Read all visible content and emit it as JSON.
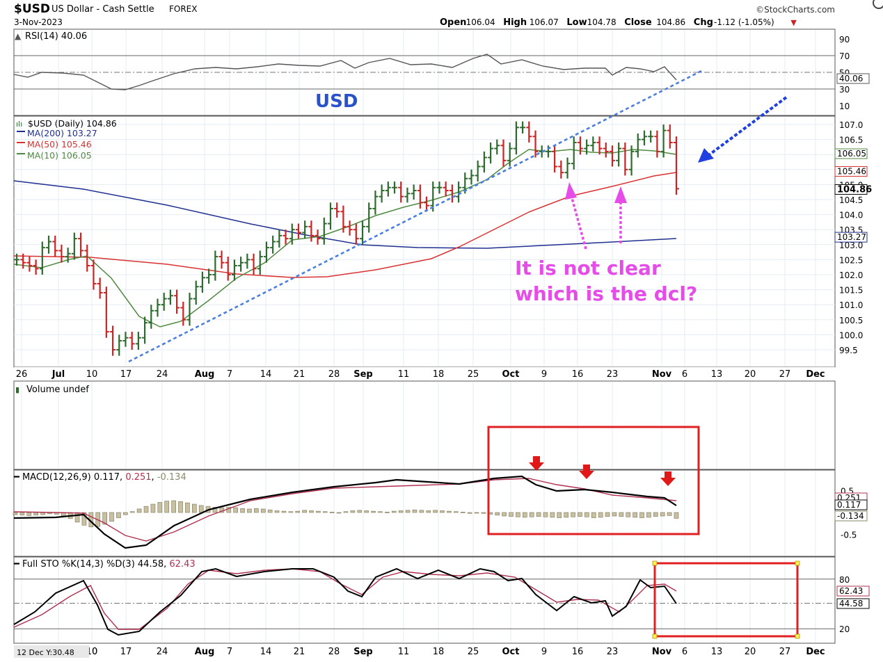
{
  "header": {
    "symbol": "$USD",
    "name": "US Dollar - Cash Settle",
    "exchange": "FOREX",
    "date": "3-Nov-2023",
    "source": "©StockCharts.com",
    "ohlc": [
      {
        "label": "Open",
        "value": "106.04"
      },
      {
        "label": "High",
        "value": "106.07"
      },
      {
        "label": "Low",
        "value": "104.78"
      },
      {
        "label": "Close",
        "value": "104.86"
      },
      {
        "label": "Chg",
        "value": "-1.12 (-1.05%)"
      }
    ]
  },
  "colors": {
    "price_up": "#2d6a2d",
    "price_down": "#cc2222",
    "ma200": "#1f2f8f",
    "ma50": "#d93030",
    "ma10": "#4f8a40",
    "macd_signal": "#b03050",
    "trendline": "#4a7fe0",
    "annotation_pink": "#e64ce8",
    "box_red": "#e02020",
    "grid": "#e4ecf4",
    "axis_bg": "#ffffff"
  },
  "x_axis": {
    "tick_labels": [
      "26",
      "Jul",
      "10",
      "17",
      "24",
      "Aug",
      "7",
      "14",
      "21",
      "28",
      "Sep",
      "11",
      "18",
      "25",
      "Oct",
      "9",
      "16",
      "23",
      "Nov",
      "6",
      "13",
      "20",
      "27",
      "Dec"
    ],
    "bold_labels": [
      "Jul",
      "Aug",
      "Sep",
      "Oct",
      "Nov",
      "Dec"
    ],
    "bottom_first_label": "0",
    "bottom_corner_label": "12 Dec Y:30.48"
  },
  "rsi_panel": {
    "legend": "RSI(14) 40.06",
    "y_ticks": [
      "90",
      "70",
      "50",
      "30",
      "10"
    ],
    "last_value_label": "40.06",
    "overlay_label": "USD"
  },
  "price_panel": {
    "legend": [
      {
        "text": "$USD (Daily) 104.86",
        "color": "#000000"
      },
      {
        "text": "MA(200) 103.27",
        "color": "#1f2f8f"
      },
      {
        "text": "MA(50) 105.46",
        "color": "#d93030"
      },
      {
        "text": "MA(10) 106.05",
        "color": "#4f8a40"
      }
    ],
    "y_ticks": [
      "107.0",
      "106.5",
      "106.0",
      "105.5",
      "105.0",
      "104.5",
      "104.0",
      "103.5",
      "103.0",
      "102.5",
      "102.0",
      "101.5",
      "101.0",
      "100.5",
      "100.0",
      "99.5"
    ],
    "value_labels": [
      {
        "text": "106.05",
        "value": 106.05,
        "color": "#4f8a40"
      },
      {
        "text": "105.46",
        "value": 105.46,
        "color": "#d93030"
      },
      {
        "text": "104.86",
        "value": 104.86,
        "color": "#000000"
      },
      {
        "text": "103.27",
        "value": 103.27,
        "color": "#1f2f8f"
      }
    ],
    "annotation_line1": "It is not clear",
    "annotation_line2": "which is the dcl?"
  },
  "volume_panel": {
    "legend": "Volume undef"
  },
  "macd_panel": {
    "legend_prefix": "MACD(12,26,9) 0.117, ",
    "legend_signal": "0.251",
    "legend_sep": ", ",
    "legend_hist": "-0.134",
    "y_ticks": [
      "0.5",
      "-0.5"
    ],
    "value_labels": [
      "0.251",
      "0.117",
      "-0.134"
    ]
  },
  "sto_panel": {
    "legend_prefix": "Full STO %K(14,3) %D(3) 44.58, ",
    "legend_d": "62.43",
    "y_ticks": [
      "80",
      "20"
    ],
    "value_labels": [
      "62.43",
      "44.58"
    ]
  },
  "chart_data": {
    "type": "line",
    "title": "$USD US Dollar - Cash Settle FOREX",
    "xlabel": "",
    "ylabel": "",
    "x_start": "2023-06-26",
    "x_end": "2023-12-04",
    "price": {
      "name": "$USD (Daily)",
      "ylim": [
        99.2,
        107.2
      ],
      "closes": [
        102.5,
        102.4,
        102.3,
        102.2,
        102.9,
        103.1,
        102.8,
        102.6,
        102.7,
        103.2,
        102.8,
        102.3,
        101.7,
        101.4,
        100.1,
        99.5,
        99.8,
        99.9,
        99.7,
        99.9,
        100.4,
        100.8,
        101.0,
        101.2,
        101.3,
        100.9,
        100.5,
        101.2,
        101.6,
        101.9,
        102.0,
        102.6,
        102.4,
        102.0,
        102.3,
        102.4,
        102.5,
        102.2,
        102.6,
        102.9,
        103.1,
        103.3,
        103.2,
        103.5,
        103.4,
        103.6,
        103.3,
        103.2,
        103.7,
        104.2,
        104.1,
        103.6,
        103.5,
        103.2,
        103.6,
        104.2,
        104.6,
        104.8,
        104.9,
        104.9,
        104.6,
        104.7,
        104.8,
        104.4,
        104.3,
        104.9,
        104.9,
        104.8,
        104.6,
        104.9,
        105.2,
        105.3,
        105.6,
        105.9,
        106.2,
        106.3,
        105.8,
        106.2,
        106.9,
        106.9,
        106.6,
        106.1,
        106.1,
        106.1,
        105.6,
        105.4,
        105.7,
        106.4,
        106.2,
        106.3,
        106.4,
        106.2,
        106.1,
        105.8,
        106.2,
        105.5,
        106.1,
        106.5,
        106.6,
        106.6,
        106.1,
        106.8,
        106.4,
        104.86
      ],
      "ma200": {
        "name": "MA(200)",
        "last": 103.27
      },
      "ma50": {
        "name": "MA(50)",
        "last": 105.46
      },
      "ma10": {
        "name": "MA(10)",
        "last": 106.05
      }
    },
    "rsi": {
      "name": "RSI(14)",
      "ylim": [
        0,
        100
      ],
      "last": 40.06,
      "reference_lines": [
        70,
        50,
        30
      ]
    },
    "macd": {
      "name": "MACD(12,26,9)",
      "macd": 0.117,
      "signal": 0.251,
      "histogram": -0.134,
      "ylim": [
        -1.05,
        0.85
      ]
    },
    "stochastic": {
      "name": "Full STO %K(14,3) %D(3)",
      "k": 44.58,
      "d": 62.43,
      "ylim": [
        0,
        100
      ],
      "reference_lines": [
        80,
        50,
        20
      ]
    }
  }
}
